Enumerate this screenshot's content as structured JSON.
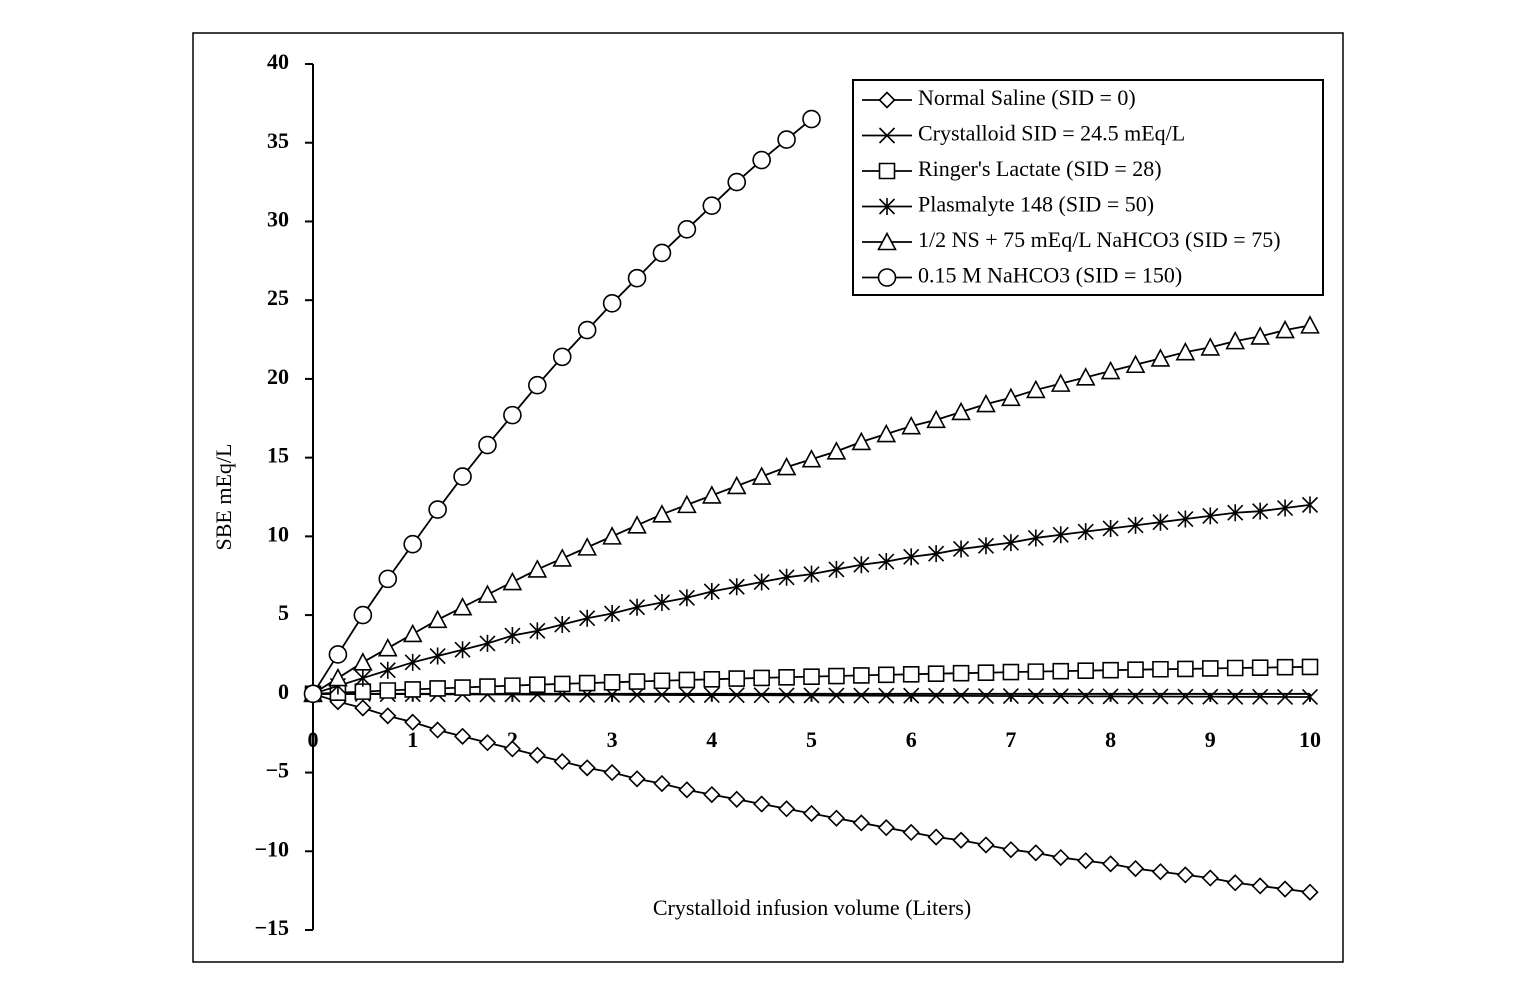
{
  "chart_data": {
    "type": "line",
    "xlabel": "Crystalloid infusion volume (Liters)",
    "ylabel": "SBE mEq/L",
    "x": [
      0,
      0.25,
      0.5,
      0.75,
      1,
      1.25,
      1.5,
      1.75,
      2,
      2.25,
      2.5,
      2.75,
      3,
      3.25,
      3.5,
      3.75,
      4,
      4.25,
      4.5,
      4.75,
      5,
      5.25,
      5.5,
      5.75,
      6,
      6.25,
      6.5,
      6.75,
      7,
      7.25,
      7.5,
      7.75,
      8,
      8.25,
      8.5,
      8.75,
      9,
      9.25,
      9.5,
      9.75,
      10
    ],
    "xlim": [
      0,
      10
    ],
    "xticks": [
      0,
      1,
      2,
      3,
      4,
      5,
      6,
      7,
      8,
      9,
      10
    ],
    "ylim": [
      -15,
      40
    ],
    "yticks": [
      {
        "value": -15,
        "label": "−15"
      },
      {
        "value": -10,
        "label": "−10"
      },
      {
        "value": -5,
        "label": "−5"
      },
      0,
      5,
      10,
      15,
      20,
      25,
      30,
      35,
      40
    ],
    "legend": "upper right",
    "series": [
      {
        "name": "Normal Saline (SID = 0)",
        "color": "#000000",
        "marker": "diamond",
        "values": [
          0,
          -0.5,
          -0.9,
          -1.4,
          -1.8,
          -2.3,
          -2.7,
          -3.1,
          -3.5,
          -3.9,
          -4.3,
          -4.7,
          -5.0,
          -5.4,
          -5.7,
          -6.1,
          -6.4,
          -6.7,
          -7.0,
          -7.3,
          -7.6,
          -7.9,
          -8.2,
          -8.5,
          -8.8,
          -9.1,
          -9.3,
          -9.6,
          -9.9,
          -10.1,
          -10.4,
          -10.6,
          -10.8,
          -11.1,
          -11.3,
          -11.5,
          -11.7,
          -12.0,
          -12.2,
          -12.4,
          -12.6
        ]
      },
      {
        "name": "Crystalloid SID = 24.5 mEq/L",
        "color": "#000000",
        "marker": "cross",
        "values": [
          0,
          -0.01,
          -0.01,
          -0.02,
          -0.02,
          -0.03,
          -0.03,
          -0.04,
          -0.04,
          -0.05,
          -0.05,
          -0.06,
          -0.06,
          -0.07,
          -0.07,
          -0.08,
          -0.08,
          -0.09,
          -0.09,
          -0.1,
          -0.1,
          -0.11,
          -0.11,
          -0.12,
          -0.12,
          -0.13,
          -0.13,
          -0.14,
          -0.14,
          -0.15,
          -0.15,
          -0.16,
          -0.16,
          -0.17,
          -0.17,
          -0.18,
          -0.18,
          -0.19,
          -0.19,
          -0.2,
          -0.2
        ]
      },
      {
        "name": "Ringer's Lactate (SID = 28)",
        "color": "#000000",
        "marker": "square",
        "values": [
          0,
          0.07,
          0.14,
          0.21,
          0.28,
          0.34,
          0.4,
          0.46,
          0.52,
          0.58,
          0.63,
          0.68,
          0.73,
          0.78,
          0.83,
          0.88,
          0.92,
          0.97,
          1.01,
          1.05,
          1.09,
          1.13,
          1.17,
          1.21,
          1.24,
          1.28,
          1.31,
          1.34,
          1.38,
          1.41,
          1.44,
          1.47,
          1.5,
          1.53,
          1.56,
          1.58,
          1.61,
          1.64,
          1.66,
          1.69,
          1.71
        ]
      },
      {
        "name": "Plasmalyte 148 (SID = 50)",
        "color": "#000000",
        "marker": "asterisk",
        "values": [
          0,
          0.5,
          1.0,
          1.5,
          2.0,
          2.4,
          2.8,
          3.2,
          3.7,
          4.0,
          4.4,
          4.8,
          5.1,
          5.5,
          5.8,
          6.1,
          6.5,
          6.8,
          7.1,
          7.4,
          7.6,
          7.9,
          8.2,
          8.4,
          8.7,
          8.9,
          9.2,
          9.4,
          9.6,
          9.9,
          10.1,
          10.3,
          10.5,
          10.7,
          10.9,
          11.1,
          11.3,
          11.5,
          11.6,
          11.8,
          12.0
        ]
      },
      {
        "name": "1/2 NS + 75 mEq/L NaHCO3 (SID = 75)",
        "color": "#000000",
        "marker": "triangle",
        "values": [
          0,
          1.0,
          2.0,
          2.9,
          3.8,
          4.7,
          5.5,
          6.3,
          7.1,
          7.9,
          8.6,
          9.3,
          10.0,
          10.7,
          11.4,
          12.0,
          12.6,
          13.2,
          13.8,
          14.4,
          14.9,
          15.4,
          16.0,
          16.5,
          17.0,
          17.4,
          17.9,
          18.4,
          18.8,
          19.3,
          19.7,
          20.1,
          20.5,
          20.9,
          21.3,
          21.7,
          22.0,
          22.4,
          22.7,
          23.1,
          23.4
        ]
      },
      {
        "name": "0.15 M NaHCO3 (SID = 150)",
        "color": "#000000",
        "marker": "circle",
        "values": [
          0,
          2.5,
          5.0,
          7.3,
          9.5,
          11.7,
          13.8,
          15.8,
          17.7,
          19.6,
          21.4,
          23.1,
          24.8,
          26.4,
          28.0,
          29.5,
          31.0,
          32.5,
          33.9,
          35.2,
          36.5,
          null,
          null,
          null,
          null,
          null,
          null,
          null,
          null,
          null,
          null,
          null,
          null,
          null,
          null,
          null,
          null,
          null,
          null,
          null,
          null
        ]
      }
    ]
  }
}
